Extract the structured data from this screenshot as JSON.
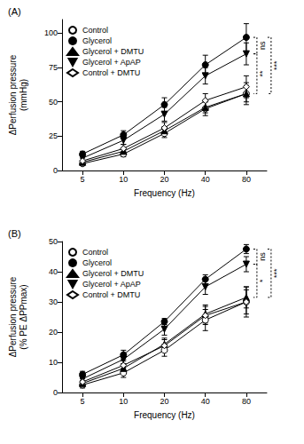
{
  "chart_data": [
    {
      "type": "line",
      "title": "(A)",
      "xlabel": "Frequency (Hz)",
      "ylabel": "ΔPerfusion pressure\n(mmHg)",
      "categories": [
        "5",
        "10",
        "20",
        "40",
        "80"
      ],
      "ylim": [
        0,
        110
      ],
      "yticks": [
        0,
        25,
        50,
        75,
        100
      ],
      "grid": false,
      "legend": "upper left",
      "series": [
        {
          "name": "Control",
          "color": "#000000",
          "marker": "circle-open",
          "values": [
            5,
            12,
            27,
            45,
            56
          ],
          "errors": [
            1,
            2,
            3,
            5,
            8
          ]
        },
        {
          "name": "Glycerol",
          "color": "#000000",
          "marker": "circle",
          "values": [
            12,
            26,
            48,
            77,
            97
          ],
          "errors": [
            2,
            3,
            5,
            7,
            10
          ]
        },
        {
          "name": "Glycerol + DMTU",
          "color": "#000000",
          "marker": "triangle",
          "values": [
            6,
            14,
            29,
            46,
            56
          ],
          "errors": [
            1,
            2,
            3,
            4,
            6
          ]
        },
        {
          "name": "Glycerol + ApAP",
          "color": "#000000",
          "marker": "triangle-down",
          "values": [
            9,
            22,
            41,
            69,
            85
          ],
          "errors": [
            2,
            3,
            5,
            6,
            8
          ]
        },
        {
          "name": "Control + DMTU",
          "color": "#000000",
          "marker": "diamond-open",
          "values": [
            7,
            16,
            31,
            51,
            61
          ],
          "errors": [
            2,
            3,
            4,
            5,
            8
          ]
        }
      ],
      "annotations": [
        {
          "text": "ns",
          "between": [
            "Glycerol",
            "Glycerol + ApAP"
          ]
        },
        {
          "text": "**",
          "between": [
            "Glycerol + ApAP",
            "Glycerol + DMTU"
          ]
        },
        {
          "text": "***",
          "between": [
            "Glycerol",
            "Glycerol + DMTU"
          ]
        }
      ]
    },
    {
      "type": "line",
      "title": "(B)",
      "xlabel": "Frequency (Hz)",
      "ylabel": "ΔPerfusion pressure\n(% PE ΔPPmax)",
      "categories": [
        "5",
        "10",
        "20",
        "40",
        "80"
      ],
      "ylim": [
        0,
        50
      ],
      "yticks": [
        0,
        10,
        20,
        30,
        40,
        50
      ],
      "grid": false,
      "legend": "upper left",
      "series": [
        {
          "name": "Control",
          "color": "#000000",
          "marker": "circle-open",
          "values": [
            2.5,
            6.5,
            14,
            24,
            30
          ],
          "errors": [
            1,
            1.5,
            2,
            3.5,
            5
          ]
        },
        {
          "name": "Glycerol",
          "color": "#000000",
          "marker": "circle",
          "values": [
            6,
            12.5,
            23.5,
            37.5,
            47.5
          ],
          "errors": [
            1,
            1.5,
            1,
            1.5,
            1.5
          ]
        },
        {
          "name": "Glycerol + DMTU",
          "color": "#000000",
          "marker": "triangle",
          "values": [
            3,
            8,
            16,
            26,
            31.5
          ],
          "errors": [
            1,
            1.5,
            2,
            3,
            3.5
          ]
        },
        {
          "name": "Glycerol + ApAP",
          "color": "#000000",
          "marker": "triangle-down",
          "values": [
            4.5,
            11,
            21,
            35,
            42.5
          ],
          "errors": [
            1,
            1.5,
            2,
            2.5,
            2.5
          ]
        },
        {
          "name": "Control + DMTU",
          "color": "#000000",
          "marker": "diamond-open",
          "values": [
            3.5,
            9,
            15.5,
            25.5,
            30
          ],
          "errors": [
            1,
            1.5,
            2,
            3,
            4
          ]
        }
      ],
      "annotations": [
        {
          "text": "ns",
          "between": [
            "Glycerol",
            "Glycerol + ApAP"
          ]
        },
        {
          "text": "*",
          "between": [
            "Glycerol + ApAP",
            "Glycerol + DMTU"
          ]
        },
        {
          "text": "***",
          "between": [
            "Glycerol",
            "Glycerol + DMTU"
          ]
        }
      ]
    }
  ]
}
